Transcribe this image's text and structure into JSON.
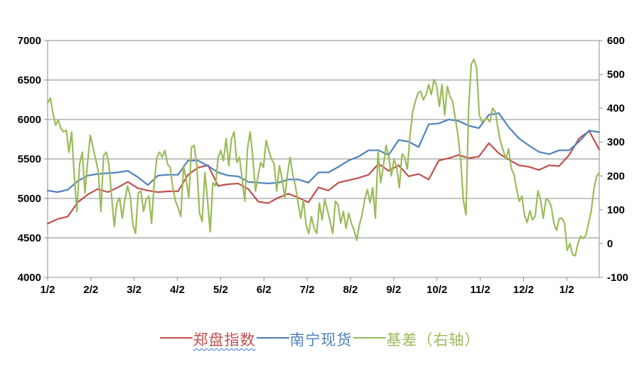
{
  "chart_data": {
    "type": "line",
    "title": "",
    "grid": true,
    "legend_position": "bottom",
    "x_axis": {
      "labels": [
        "1/2",
        "2/2",
        "3/2",
        "4/2",
        "5/2",
        "6/2",
        "7/2",
        "8/2",
        "9/2",
        "10/2",
        "11/2",
        "12/2",
        "1/2"
      ],
      "span_months": 12.75
    },
    "left_axis": {
      "min": 4000,
      "max": 7000,
      "tick_labels": [
        "7000",
        "6500",
        "6000",
        "5500",
        "5000",
        "4500",
        "4000"
      ]
    },
    "right_axis": {
      "min": -100,
      "max": 600,
      "tick_labels": [
        "600",
        "500",
        "400",
        "300",
        "200",
        "100",
        "0",
        "-100"
      ]
    },
    "series": [
      {
        "name": "郑盘指数",
        "axis": "left",
        "color": "#C0504D",
        "spellcheck_underline": true,
        "values": [
          4680,
          4740,
          4770,
          4950,
          5050,
          5120,
          5080,
          5140,
          5210,
          5130,
          5100,
          5080,
          5090,
          5090,
          5300,
          5390,
          5420,
          5160,
          5180,
          5190,
          5120,
          4960,
          4940,
          5010,
          5060,
          5010,
          4950,
          5140,
          5100,
          5200,
          5230,
          5260,
          5300,
          5440,
          5350,
          5420,
          5280,
          5310,
          5240,
          5480,
          5510,
          5550,
          5510,
          5530,
          5700,
          5570,
          5490,
          5420,
          5400,
          5360,
          5420,
          5410,
          5550,
          5760,
          5855,
          5620
        ]
      },
      {
        "name": "南宁现货",
        "axis": "left",
        "color": "#4F81BD",
        "spellcheck_underline": false,
        "values": [
          5100,
          5080,
          5110,
          5220,
          5290,
          5310,
          5320,
          5330,
          5350,
          5270,
          5170,
          5290,
          5300,
          5300,
          5480,
          5480,
          5410,
          5330,
          5290,
          5280,
          5210,
          5200,
          5190,
          5200,
          5240,
          5240,
          5200,
          5330,
          5330,
          5400,
          5480,
          5530,
          5610,
          5610,
          5550,
          5740,
          5720,
          5650,
          5940,
          5950,
          6000,
          5980,
          5920,
          5890,
          6060,
          6080,
          5900,
          5760,
          5670,
          5590,
          5560,
          5610,
          5610,
          5720,
          5860,
          5840
        ]
      },
      {
        "name": "基差（右轴）",
        "axis": "right",
        "color": "#9BBB59",
        "spellcheck_underline": false,
        "values": [
          415,
          430,
          385,
          350,
          365,
          340,
          330,
          335,
          270,
          330,
          200,
          95,
          235,
          270,
          150,
          240,
          320,
          285,
          250,
          215,
          95,
          260,
          270,
          235,
          140,
          50,
          120,
          135,
          75,
          130,
          170,
          140,
          55,
          30,
          150,
          155,
          95,
          130,
          140,
          60,
          180,
          255,
          270,
          255,
          275,
          235,
          225,
          165,
          125,
          105,
          80,
          230,
          190,
          135,
          285,
          290,
          230,
          90,
          65,
          210,
          130,
          35,
          180,
          170,
          255,
          275,
          245,
          310,
          230,
          310,
          330,
          240,
          255,
          190,
          125,
          280,
          330,
          255,
          155,
          200,
          240,
          225,
          305,
          275,
          250,
          235,
          155,
          230,
          190,
          135,
          205,
          255,
          205,
          170,
          120,
          75,
          130,
          55,
          30,
          80,
          45,
          30,
          120,
          70,
          130,
          100,
          65,
          30,
          125,
          115,
          60,
          95,
          45,
          90,
          60,
          40,
          10,
          55,
          85,
          130,
          160,
          120,
          165,
          75,
          270,
          180,
          230,
          290,
          260,
          200,
          250,
          225,
          165,
          265,
          255,
          220,
          320,
          390,
          420,
          445,
          450,
          425,
          440,
          470,
          440,
          485,
          465,
          405,
          470,
          380,
          465,
          435,
          420,
          370,
          320,
          250,
          130,
          85,
          400,
          530,
          545,
          520,
          380,
          360,
          365,
          370,
          360,
          400,
          390,
          340,
          300,
          275,
          250,
          280,
          222,
          205,
          160,
          125,
          140,
          83,
          62,
          97,
          70,
          82,
          156,
          130,
          75,
          130,
          128,
          110,
          60,
          39,
          74,
          75,
          60,
          -20,
          0,
          -33,
          -36,
          0,
          22,
          15,
          25,
          60,
          95,
          160,
          198,
          210
        ]
      }
    ]
  },
  "colors": {
    "background": "#FFFFFF",
    "gridline": "#8C8C8C",
    "axis_line": "#8C8C8C",
    "axis_text": "#000000",
    "squiggle": "#3B6FD4",
    "series_red": "#C0504D",
    "series_blue": "#4F81BD",
    "series_green": "#9BBB59"
  }
}
